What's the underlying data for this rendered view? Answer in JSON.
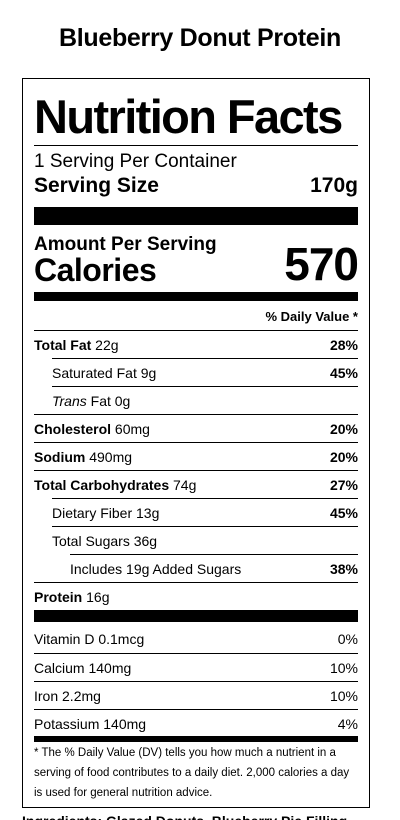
{
  "product": {
    "title": "Blueberry Donut Protein"
  },
  "label": {
    "heading": "Nutrition Facts",
    "servings_per_container": "1 Serving Per Container",
    "serving_size_label": "Serving Size",
    "serving_size_value": "170g",
    "amount_per_serving": "Amount Per Serving",
    "calories_label": "Calories",
    "calories_value": "570",
    "daily_value_header": "% Daily Value *"
  },
  "nutrients": [
    {
      "name": "Total Fat",
      "amount": " 22g",
      "dv": "28%"
    },
    {
      "name": "Saturated Fat 9g",
      "dv": "45%"
    },
    {
      "name_italic": "Trans",
      "name_rest": " Fat 0g",
      "dv": ""
    },
    {
      "name": "Cholesterol",
      "amount": " 60mg",
      "dv": "20%"
    },
    {
      "name": "Sodium",
      "amount": " 490mg",
      "dv": "20%"
    },
    {
      "name": "Total Carbohydrates",
      "amount": " 74g",
      "dv": "27%"
    },
    {
      "name": "Dietary Fiber 13g",
      "dv": "45%"
    },
    {
      "name": "Total Sugars 36g",
      "dv": ""
    },
    {
      "name": "Includes 19g Added Sugars",
      "dv": "38%"
    },
    {
      "name": "Protein",
      "amount": " 16g",
      "dv": ""
    }
  ],
  "vitamins": [
    {
      "name": "Vitamin D 0.1mcg",
      "dv": "0%"
    },
    {
      "name": "Calcium 140mg",
      "dv": "10%"
    },
    {
      "name": "Iron 2.2mg",
      "dv": "10%"
    },
    {
      "name": "Potassium 140mg",
      "dv": "4%"
    }
  ],
  "footnote": "* The % Daily Value (DV) tells you how much a nutrient in a serving of food contributes to a daily diet. 2,000 calories a day is used for general nutrition advice.",
  "ingredients_partial": "Ingredients: Glazed Donuts, Blueberry Pie Filling"
}
